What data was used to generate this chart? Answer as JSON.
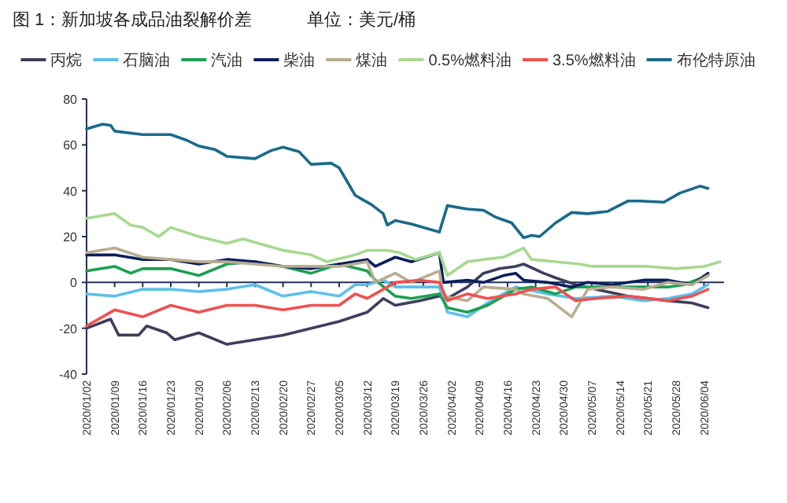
{
  "chart_data": {
    "type": "line",
    "title": "图 1：新加坡各成品油裂解价差",
    "subtitle": "单位：美元/桶",
    "legend": "top",
    "xlim": [
      "2020-01-02",
      "2020-06-09"
    ],
    "xticks": [
      {
        "value": "2020-01-02",
        "label": "2020/01/02"
      },
      {
        "value": "2020-01-09",
        "label": "2020/01/09"
      },
      {
        "value": "2020-01-16",
        "label": "2020/01/16"
      },
      {
        "value": "2020-01-23",
        "label": "2020/01/23"
      },
      {
        "value": "2020-01-30",
        "label": "2020/01/30"
      },
      {
        "value": "2020-02-06",
        "label": "2020/02/06"
      },
      {
        "value": "2020-02-13",
        "label": "2020/02/13"
      },
      {
        "value": "2020-02-20",
        "label": "2020/02/20"
      },
      {
        "value": "2020-02-27",
        "label": "2020/02/27"
      },
      {
        "value": "2020-03-05",
        "label": "2020/03/05"
      },
      {
        "value": "2020-03-12",
        "label": "2020/03/12"
      },
      {
        "value": "2020-03-19",
        "label": "2020/03/19"
      },
      {
        "value": "2020-03-26",
        "label": "2020/03/26"
      },
      {
        "value": "2020-04-02",
        "label": "2020/04/02"
      },
      {
        "value": "2020-04-09",
        "label": "2020/04/09"
      },
      {
        "value": "2020-04-16",
        "label": "2020/04/16"
      },
      {
        "value": "2020-04-23",
        "label": "2020/04/23"
      },
      {
        "value": "2020-04-30",
        "label": "2020/04/30"
      },
      {
        "value": "2020-05-07",
        "label": "2020/05/07"
      },
      {
        "value": "2020-05-14",
        "label": "2020/05/14"
      },
      {
        "value": "2020-05-21",
        "label": "2020/05/21"
      },
      {
        "value": "2020-05-28",
        "label": "2020/05/28"
      },
      {
        "value": "2020-06-04",
        "label": "2020/06/04"
      }
    ],
    "ylim": [
      -40,
      80
    ],
    "yticks": [
      -40,
      -20,
      0,
      20,
      40,
      60,
      80
    ],
    "series": [
      {
        "name": "丙烷",
        "color": "#3c3f5c",
        "x": [
          "2020-01-02",
          "2020-01-08",
          "2020-01-10",
          "2020-01-15",
          "2020-01-17",
          "2020-01-22",
          "2020-01-24",
          "2020-01-30",
          "2020-02-06",
          "2020-02-13",
          "2020-02-20",
          "2020-02-27",
          "2020-03-05",
          "2020-03-12",
          "2020-03-16",
          "2020-03-19",
          "2020-03-25",
          "2020-03-30",
          "2020-04-01",
          "2020-04-06",
          "2020-04-10",
          "2020-04-14",
          "2020-04-18",
          "2020-04-20",
          "2020-04-25",
          "2020-04-28",
          "2020-05-03",
          "2020-05-08",
          "2020-05-16",
          "2020-05-26",
          "2020-06-01",
          "2020-06-05"
        ],
        "values": [
          -20,
          -16,
          -23,
          -23,
          -19,
          -22,
          -25,
          -22,
          -27,
          -25,
          -23,
          -20,
          -17,
          -13,
          -7,
          -10,
          -8,
          -6,
          -7,
          -2,
          4,
          6,
          7,
          8,
          4,
          2,
          -1,
          -3,
          -6,
          -8,
          -9,
          -11
        ]
      },
      {
        "name": "石脑油",
        "color": "#5bc0eb",
        "x": [
          "2020-01-02",
          "2020-01-09",
          "2020-01-16",
          "2020-01-23",
          "2020-01-30",
          "2020-02-06",
          "2020-02-13",
          "2020-02-20",
          "2020-02-27",
          "2020-03-05",
          "2020-03-09",
          "2020-03-12",
          "2020-03-16",
          "2020-03-19",
          "2020-03-30",
          "2020-04-01",
          "2020-04-06",
          "2020-04-11",
          "2020-04-18",
          "2020-04-26",
          "2020-05-03",
          "2020-05-12",
          "2020-05-20",
          "2020-05-26",
          "2020-06-01",
          "2020-06-05"
        ],
        "values": [
          -5,
          -6,
          -3,
          -3,
          -4,
          -3,
          -1,
          -6,
          -4,
          -6,
          -1,
          -1,
          1,
          -2,
          -2,
          -13,
          -15,
          -9,
          -2,
          -5,
          -7,
          -6,
          -8,
          -7,
          -5,
          -1
        ]
      },
      {
        "name": "汽油",
        "color": "#1aa050",
        "x": [
          "2020-01-02",
          "2020-01-09",
          "2020-01-13",
          "2020-01-16",
          "2020-01-23",
          "2020-01-30",
          "2020-02-06",
          "2020-02-13",
          "2020-02-20",
          "2020-02-27",
          "2020-03-05",
          "2020-03-12",
          "2020-03-14",
          "2020-03-19",
          "2020-03-23",
          "2020-03-30",
          "2020-04-01",
          "2020-04-06",
          "2020-04-11",
          "2020-04-18",
          "2020-04-22",
          "2020-04-28",
          "2020-05-03",
          "2020-05-08",
          "2020-05-20",
          "2020-05-26",
          "2020-05-30",
          "2020-06-05"
        ],
        "values": [
          5,
          7,
          4,
          6,
          6,
          3,
          8,
          9,
          7,
          4,
          8,
          5,
          1,
          -6,
          -7,
          -5,
          -11,
          -13,
          -10,
          -3,
          -2,
          -5,
          -2,
          -2,
          -2,
          -2,
          -1,
          3
        ]
      },
      {
        "name": "柴油",
        "color": "#0b1f5c",
        "x": [
          "2020-01-02",
          "2020-01-09",
          "2020-01-16",
          "2020-01-23",
          "2020-01-30",
          "2020-02-06",
          "2020-02-13",
          "2020-02-20",
          "2020-02-27",
          "2020-03-05",
          "2020-03-12",
          "2020-03-14",
          "2020-03-19",
          "2020-03-23",
          "2020-03-30",
          "2020-03-31",
          "2020-04-06",
          "2020-04-10",
          "2020-04-15",
          "2020-04-18",
          "2020-04-20",
          "2020-04-26",
          "2020-05-02",
          "2020-05-06",
          "2020-05-12",
          "2020-05-20",
          "2020-05-26",
          "2020-06-01",
          "2020-06-05"
        ],
        "values": [
          12,
          12,
          10,
          10,
          8,
          10,
          9,
          7,
          6,
          8,
          10,
          7,
          11,
          9,
          13,
          0,
          1,
          0,
          3,
          4,
          1,
          0,
          -2,
          0,
          -1,
          1,
          1,
          -1,
          4
        ]
      },
      {
        "name": "煤油",
        "color": "#b8ad90",
        "x": [
          "2020-01-02",
          "2020-01-09",
          "2020-01-16",
          "2020-01-23",
          "2020-01-30",
          "2020-02-06",
          "2020-02-13",
          "2020-02-20",
          "2020-02-27",
          "2020-03-05",
          "2020-03-12",
          "2020-03-14",
          "2020-03-19",
          "2020-03-23",
          "2020-03-30",
          "2020-03-31",
          "2020-04-06",
          "2020-04-10",
          "2020-04-18",
          "2020-04-20",
          "2020-04-26",
          "2020-05-02",
          "2020-05-06",
          "2020-05-12",
          "2020-05-20",
          "2020-05-26",
          "2020-06-01",
          "2020-06-05"
        ],
        "values": [
          13,
          15,
          11,
          10,
          9,
          9,
          8,
          7,
          7,
          7,
          9,
          0,
          4,
          0,
          5,
          -6,
          -8,
          -2,
          -3,
          -5,
          -7,
          -15,
          -3,
          -2,
          -3,
          0,
          -1,
          3
        ]
      },
      {
        "name": "0.5%燃料油",
        "color": "#a8d890",
        "x": [
          "2020-01-02",
          "2020-01-09",
          "2020-01-13",
          "2020-01-16",
          "2020-01-20",
          "2020-01-23",
          "2020-01-30",
          "2020-02-06",
          "2020-02-10",
          "2020-02-20",
          "2020-02-27",
          "2020-03-02",
          "2020-03-09",
          "2020-03-12",
          "2020-03-17",
          "2020-03-20",
          "2020-03-24",
          "2020-03-30",
          "2020-04-01",
          "2020-04-06",
          "2020-04-10",
          "2020-04-15",
          "2020-04-20",
          "2020-04-22",
          "2020-04-28",
          "2020-05-04",
          "2020-05-07",
          "2020-05-14",
          "2020-05-21",
          "2020-05-28",
          "2020-06-04",
          "2020-06-08"
        ],
        "values": [
          28,
          30,
          25,
          24,
          20,
          24,
          20,
          17,
          19,
          14,
          12,
          9,
          12,
          14,
          14,
          13,
          10,
          13,
          3,
          9,
          10,
          11,
          15,
          10,
          9,
          8,
          7,
          7,
          7,
          6,
          7,
          9
        ]
      },
      {
        "name": "3.5%燃料油",
        "color": "#f05050",
        "x": [
          "2020-01-02",
          "2020-01-06",
          "2020-01-09",
          "2020-01-16",
          "2020-01-23",
          "2020-01-30",
          "2020-02-06",
          "2020-02-13",
          "2020-02-20",
          "2020-02-27",
          "2020-03-05",
          "2020-03-09",
          "2020-03-12",
          "2020-03-16",
          "2020-03-19",
          "2020-03-25",
          "2020-03-30",
          "2020-04-01",
          "2020-04-06",
          "2020-04-11",
          "2020-04-18",
          "2020-04-22",
          "2020-04-28",
          "2020-05-03",
          "2020-05-08",
          "2020-05-16",
          "2020-05-26",
          "2020-06-01",
          "2020-06-05"
        ],
        "values": [
          -19,
          -15,
          -12,
          -15,
          -10,
          -13,
          -10,
          -10,
          -12,
          -10,
          -10,
          -5,
          -7,
          -3,
          0,
          1,
          0,
          -8,
          -5,
          -7,
          -5,
          -3,
          -2,
          -8,
          -7,
          -6,
          -8,
          -6,
          -3
        ]
      },
      {
        "name": "布伦特原油",
        "color": "#1a6a8a",
        "x": [
          "2020-01-02",
          "2020-01-06",
          "2020-01-08",
          "2020-01-09",
          "2020-01-16",
          "2020-01-23",
          "2020-01-27",
          "2020-01-30",
          "2020-02-03",
          "2020-02-06",
          "2020-02-13",
          "2020-02-17",
          "2020-02-20",
          "2020-02-24",
          "2020-02-27",
          "2020-03-03",
          "2020-03-05",
          "2020-03-09",
          "2020-03-11",
          "2020-03-13",
          "2020-03-16",
          "2020-03-17",
          "2020-03-19",
          "2020-03-23",
          "2020-03-30",
          "2020-04-01",
          "2020-04-06",
          "2020-04-10",
          "2020-04-13",
          "2020-04-17",
          "2020-04-20",
          "2020-04-22",
          "2020-04-24",
          "2020-04-28",
          "2020-05-02",
          "2020-05-06",
          "2020-05-11",
          "2020-05-16",
          "2020-05-19",
          "2020-05-25",
          "2020-05-29",
          "2020-06-03",
          "2020-06-05"
        ],
        "values": [
          67,
          69,
          68.5,
          66,
          64.5,
          64.5,
          62,
          59.5,
          58,
          55,
          54,
          57.5,
          59,
          57,
          51.5,
          52,
          50,
          38,
          36,
          34,
          30,
          25,
          27,
          25.5,
          22,
          33.5,
          32,
          31.5,
          28.5,
          26,
          19.5,
          20.5,
          20,
          26,
          30.5,
          30,
          31,
          35.5,
          35.5,
          35,
          39,
          42,
          41
        ]
      }
    ]
  }
}
